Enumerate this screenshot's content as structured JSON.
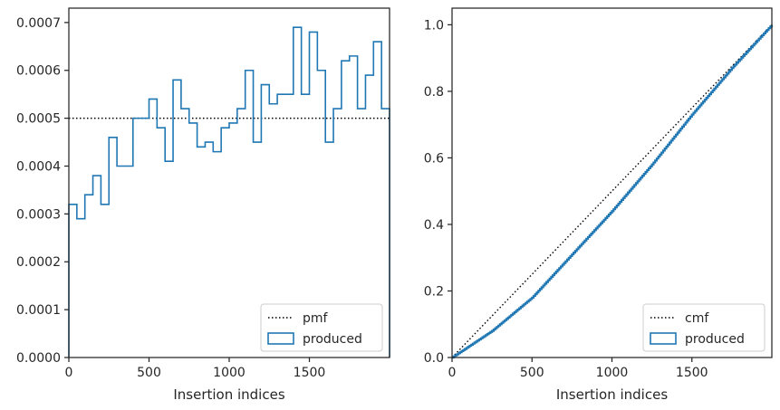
{
  "chart_data": [
    {
      "type": "step",
      "xlabel": "Insertion indices",
      "ylabel": "",
      "xlim": [
        0,
        2000
      ],
      "ylim": [
        0,
        0.00073
      ],
      "xticks": [
        0,
        500,
        1000,
        1500
      ],
      "xtick_labels": [
        "0",
        "500",
        "1000",
        "1500"
      ],
      "yticks": [
        0,
        0.0001,
        0.0002,
        0.0003,
        0.0004,
        0.0005,
        0.0006,
        0.0007
      ],
      "ytick_labels": [
        "0.0000",
        "0.0001",
        "0.0002",
        "0.0003",
        "0.0004",
        "0.0005",
        "0.0006",
        "0.0007"
      ],
      "grid": false,
      "legend_location": "lower right",
      "bin_edges": [
        0,
        50,
        100,
        150,
        200,
        250,
        300,
        350,
        400,
        450,
        500,
        550,
        600,
        650,
        700,
        750,
        800,
        850,
        900,
        950,
        1000,
        1050,
        1100,
        1150,
        1200,
        1250,
        1300,
        1350,
        1400,
        1450,
        1500,
        1550,
        1600,
        1650,
        1700,
        1750,
        1800,
        1850,
        1900,
        1950,
        2000
      ],
      "series": [
        {
          "name": "pmf",
          "style": "dotted",
          "color": "#000000",
          "x": [
            0,
            2000
          ],
          "values": [
            0.0005,
            0.0005
          ]
        },
        {
          "name": "produced",
          "style": "step-histogram",
          "color": "#1f77b4",
          "values": [
            0.00032,
            0.00029,
            0.00034,
            0.00038,
            0.00032,
            0.00046,
            0.0004,
            0.0004,
            0.0005,
            0.0005,
            0.00054,
            0.00048,
            0.00041,
            0.00058,
            0.00052,
            0.00049,
            0.00044,
            0.00045,
            0.00043,
            0.00048,
            0.00049,
            0.00052,
            0.0006,
            0.00045,
            0.00057,
            0.00053,
            0.00055,
            0.00055,
            0.00069,
            0.00055,
            0.00068,
            0.0006,
            0.00045,
            0.00052,
            0.00062,
            0.00063,
            0.00052,
            0.00059,
            0.00066,
            0.00052
          ]
        }
      ]
    },
    {
      "type": "line",
      "xlabel": "Insertion indices",
      "ylabel": "",
      "xlim": [
        0,
        2000
      ],
      "ylim": [
        0,
        1.05
      ],
      "xticks": [
        0,
        500,
        1000,
        1500
      ],
      "xtick_labels": [
        "0",
        "500",
        "1000",
        "1500"
      ],
      "yticks": [
        0,
        0.2,
        0.4,
        0.6,
        0.8,
        1.0
      ],
      "ytick_labels": [
        "0.0",
        "0.2",
        "0.4",
        "0.6",
        "0.8",
        "1.0"
      ],
      "grid": false,
      "legend_location": "lower right",
      "series": [
        {
          "name": "cmf",
          "style": "dotted",
          "color": "#000000",
          "x": [
            0,
            2000
          ],
          "values": [
            0,
            1.0
          ]
        },
        {
          "name": "produced",
          "style": "step-cumulative",
          "color": "#1f77b4",
          "x": [
            0,
            250,
            500,
            750,
            1000,
            1250,
            1500,
            1750,
            2000
          ],
          "values": [
            0.0,
            0.08,
            0.18,
            0.31,
            0.44,
            0.58,
            0.73,
            0.87,
            1.0
          ]
        }
      ]
    }
  ]
}
